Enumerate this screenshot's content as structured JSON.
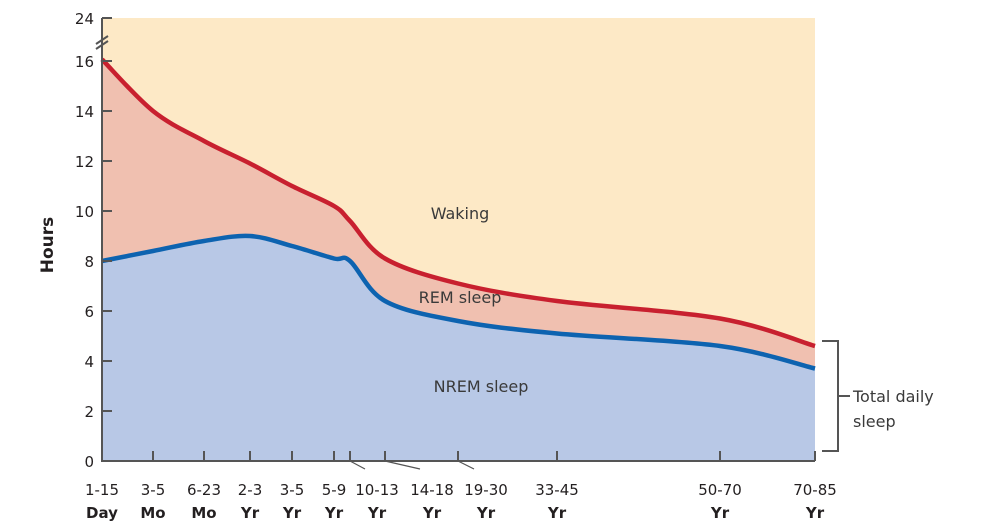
{
  "chart_data": {
    "type": "area",
    "title": "",
    "xlabel": "",
    "ylabel": "Hours",
    "ylim": [
      0,
      24
    ],
    "y_axis_break": [
      16,
      24
    ],
    "yticks": [
      0,
      2,
      4,
      6,
      8,
      10,
      12,
      14,
      16,
      24
    ],
    "categories": [
      {
        "top": "1-15",
        "bottom": "Day"
      },
      {
        "top": "3-5",
        "bottom": "Mo"
      },
      {
        "top": "6-23",
        "bottom": "Mo"
      },
      {
        "top": "2-3",
        "bottom": "Yr"
      },
      {
        "top": "3-5",
        "bottom": "Yr"
      },
      {
        "top": "5-9",
        "bottom": "Yr"
      },
      {
        "top": "10-13",
        "bottom": "Yr"
      },
      {
        "top": "14-18",
        "bottom": "Yr"
      },
      {
        "top": "19-30",
        "bottom": "Yr"
      },
      {
        "top": "33-45",
        "bottom": "Yr"
      },
      {
        "top": "50-70",
        "bottom": "Yr"
      },
      {
        "top": "70-85",
        "bottom": "Yr"
      }
    ],
    "series": [
      {
        "name": "NREM sleep",
        "color": "#0d63b0",
        "fill": "#b8c8e6",
        "values": [
          8.0,
          8.4,
          8.8,
          9.0,
          8.6,
          8.1,
          8.0,
          6.4,
          5.6,
          5.1,
          4.6,
          3.7
        ]
      },
      {
        "name": "REM sleep",
        "color": "#c8202f",
        "fill": "#f0c0b0",
        "total_values": [
          16.3,
          14.0,
          12.8,
          11.9,
          11.0,
          10.2,
          9.6,
          8.1,
          7.1,
          6.4,
          5.7,
          4.6
        ]
      },
      {
        "name": "Waking",
        "fill": "#fde9c6"
      }
    ],
    "annotation": {
      "label_line1": "Total daily",
      "label_line2": "sleep"
    },
    "grid": false
  }
}
